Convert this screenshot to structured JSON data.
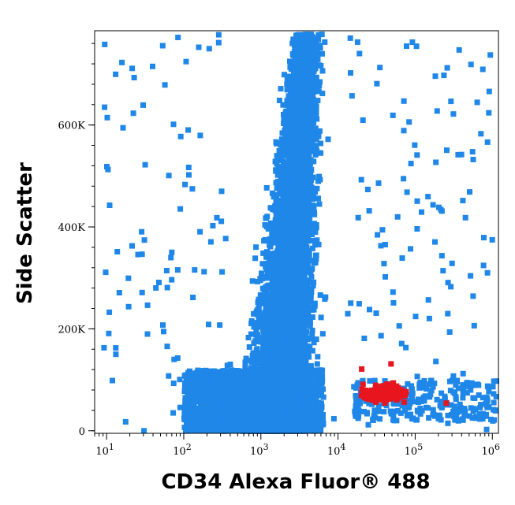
{
  "chart_data": {
    "type": "scatter",
    "title": "",
    "xlabel": "CD34 Alexa Fluor® 488",
    "ylabel": "Side Scatter",
    "x_scale": "log",
    "y_scale": "linear",
    "xlim": [
      7,
      1200000
    ],
    "ylim": [
      -5000,
      785000
    ],
    "grid": false,
    "legend": "none",
    "x_ticks": [
      {
        "value": 10,
        "base": "10",
        "exp": "1"
      },
      {
        "value": 100,
        "base": "10",
        "exp": "2"
      },
      {
        "value": 1000,
        "base": "10",
        "exp": "3"
      },
      {
        "value": 10000,
        "base": "10",
        "exp": "4"
      },
      {
        "value": 100000,
        "base": "10",
        "exp": "5"
      },
      {
        "value": 1000000,
        "base": "10",
        "exp": "6"
      }
    ],
    "y_ticks": [
      {
        "value": 0,
        "label": "0"
      },
      {
        "value": 200000,
        "label": "200K"
      },
      {
        "value": 400000,
        "label": "400K"
      },
      {
        "value": 600000,
        "label": "600K"
      }
    ],
    "series": [
      {
        "color": "#1f87e8",
        "description_points": [
          [
            4000,
            750000
          ],
          [
            5000,
            650000
          ],
          [
            4000,
            500000
          ],
          [
            3500,
            350000
          ],
          [
            2500,
            150000
          ],
          [
            1500,
            80000
          ],
          [
            500,
            40000
          ],
          [
            200,
            30000
          ],
          [
            100,
            60000
          ],
          [
            60,
            150000
          ],
          [
            300,
            250000
          ],
          [
            800,
            300000
          ],
          [
            20000,
            300000
          ],
          [
            30000,
            200000
          ],
          [
            60000,
            60000
          ],
          [
            200000,
            60000
          ],
          [
            500000,
            40000
          ],
          [
            800000,
            50000
          ],
          [
            300000,
            400000
          ],
          [
            100000,
            500000
          ],
          [
            150000,
            650000
          ],
          [
            500000,
            700000
          ],
          [
            1000000,
            580000
          ],
          [
            30,
            50000
          ],
          [
            15,
            90000
          ]
        ]
      },
      {
        "color": "#e8141e",
        "description_points": [
          [
            25000,
            60000
          ],
          [
            30000,
            80000
          ],
          [
            40000,
            70000
          ],
          [
            50000,
            90000
          ],
          [
            60000,
            65000
          ],
          [
            70000,
            75000
          ],
          [
            80000,
            55000
          ],
          [
            45000,
            110000
          ],
          [
            35000,
            50000
          ],
          [
            55000,
            130000
          ],
          [
            20000,
            120000
          ],
          [
            90000,
            70000
          ],
          [
            250000,
            50000
          ],
          [
            100000,
            65000
          ],
          [
            65000,
            45000
          ]
        ]
      }
    ]
  }
}
